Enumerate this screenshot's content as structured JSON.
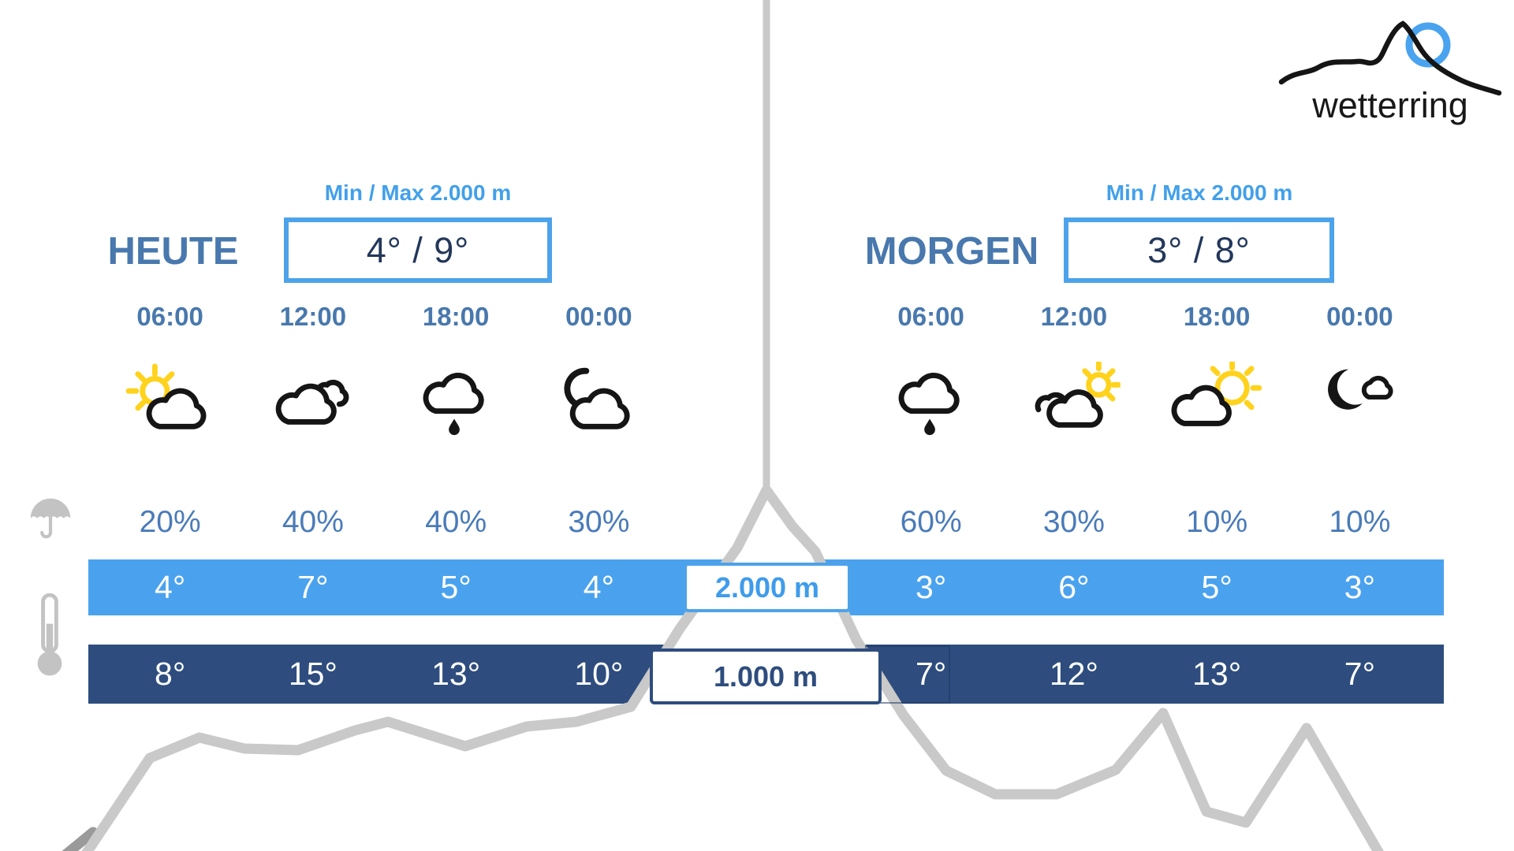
{
  "brand": {
    "name": "wetterring"
  },
  "altitude_labels": {
    "upper": "2.000 m",
    "lower": "1.000 m"
  },
  "days": [
    {
      "label": "HEUTE",
      "minmax_label": "Min / Max 2.000 m",
      "minmax_value": "4° / 9°",
      "times": [
        "06:00",
        "12:00",
        "18:00",
        "00:00"
      ],
      "icons": [
        "partly-sunny",
        "cloudy",
        "rain",
        "night-cloudy"
      ],
      "precip": [
        "20%",
        "40%",
        "40%",
        "30%"
      ],
      "temps_2000": [
        "4°",
        "7°",
        "5°",
        "4°"
      ],
      "temps_1000": [
        "8°",
        "15°",
        "13°",
        "10°"
      ]
    },
    {
      "label": "MORGEN",
      "minmax_label": "Min / Max 2.000 m",
      "minmax_value": "3° / 8°",
      "times": [
        "06:00",
        "12:00",
        "18:00",
        "00:00"
      ],
      "icons": [
        "rain",
        "clouds-sun",
        "sun-clouds",
        "clear-night-cloud"
      ],
      "precip": [
        "60%",
        "30%",
        "10%",
        "10%"
      ],
      "temps_2000": [
        "3°",
        "6°",
        "5°",
        "3°"
      ],
      "temps_1000": [
        "7°",
        "12°",
        "13°",
        "7°"
      ]
    }
  ],
  "colors": {
    "accent_light_blue": "#4da3ea",
    "bar_upper": "#4aa2ee",
    "bar_lower": "#2e4d7e",
    "text_steel_blue": "#4878ad",
    "text_navy": "#22375a",
    "mountain_gray": "#c9c9c9",
    "sun_yellow": "#FFD21C"
  }
}
